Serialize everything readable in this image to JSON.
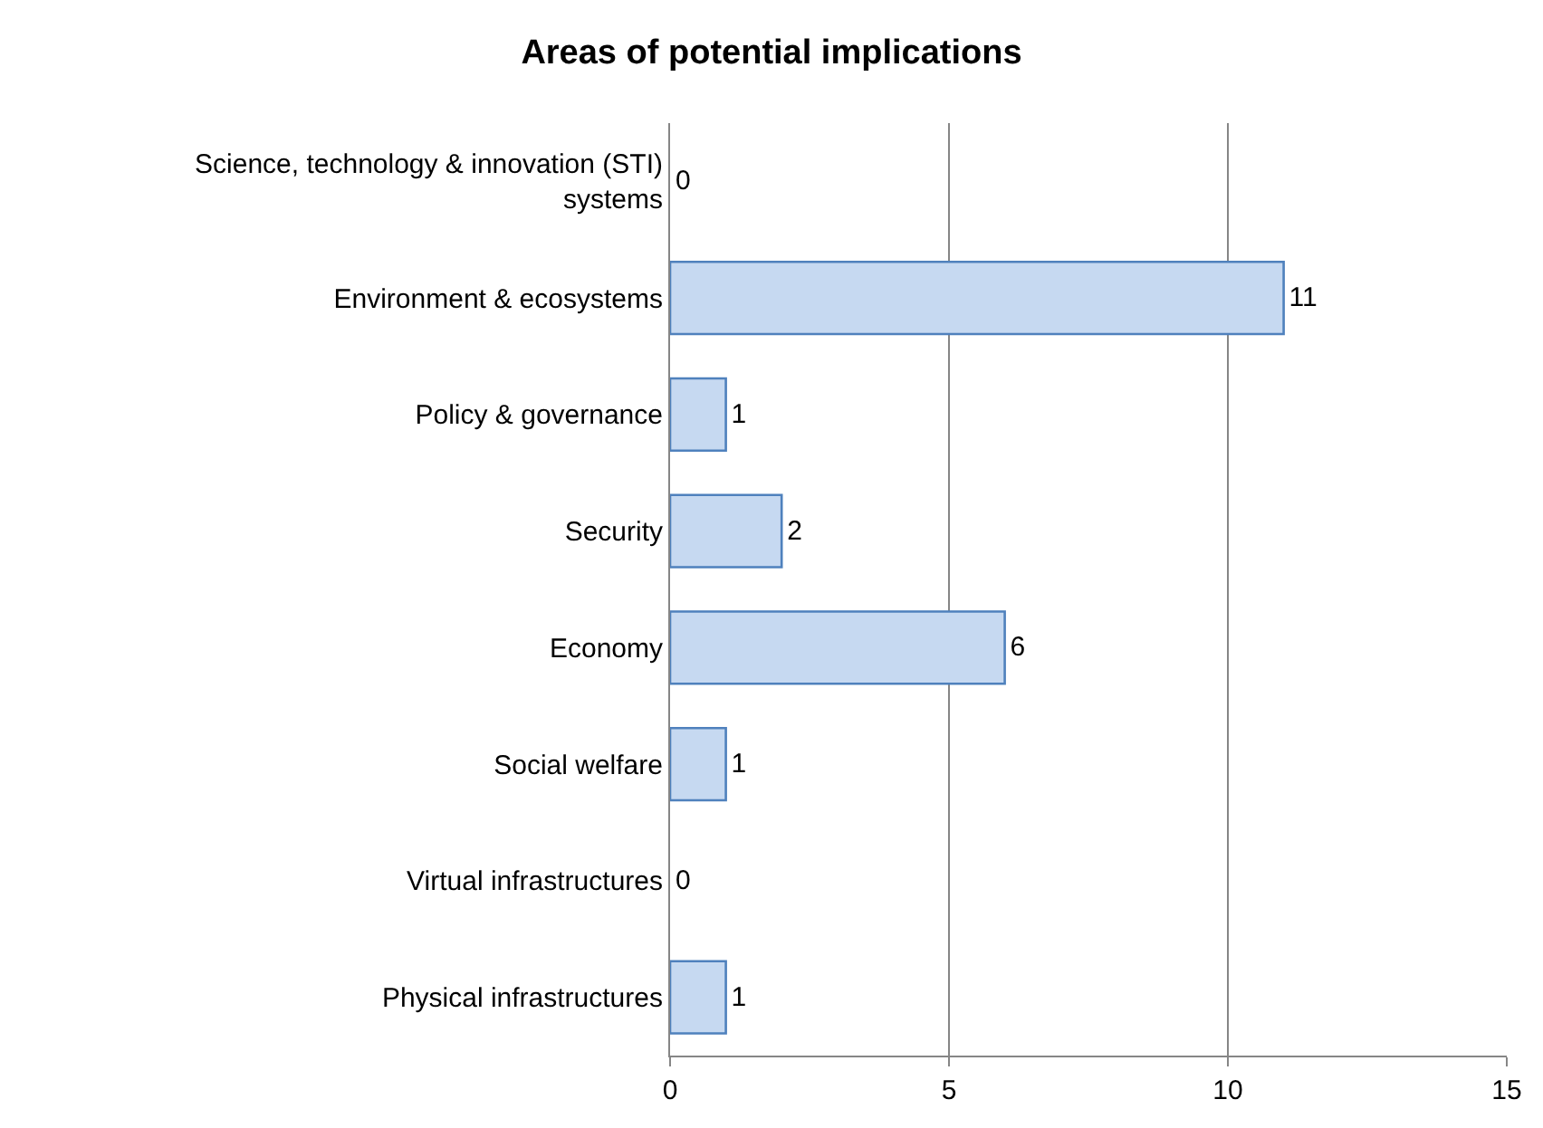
{
  "chart_data": {
    "type": "bar",
    "orientation": "horizontal",
    "title": "Areas of potential implications",
    "categories": [
      "Science, technology & innovation (STI) systems",
      "Environment & ecosystems",
      "Policy & governance",
      "Security",
      "Economy",
      "Social welfare",
      "Virtual infrastructures",
      "Physical infrastructures"
    ],
    "values": [
      0,
      11,
      1,
      2,
      6,
      1,
      0,
      1
    ],
    "color": "#c6d9f1",
    "xlim": [
      0,
      15
    ],
    "xticks": [
      0,
      5,
      10,
      15
    ],
    "grid": "x",
    "data_labels": true,
    "legend": false
  }
}
